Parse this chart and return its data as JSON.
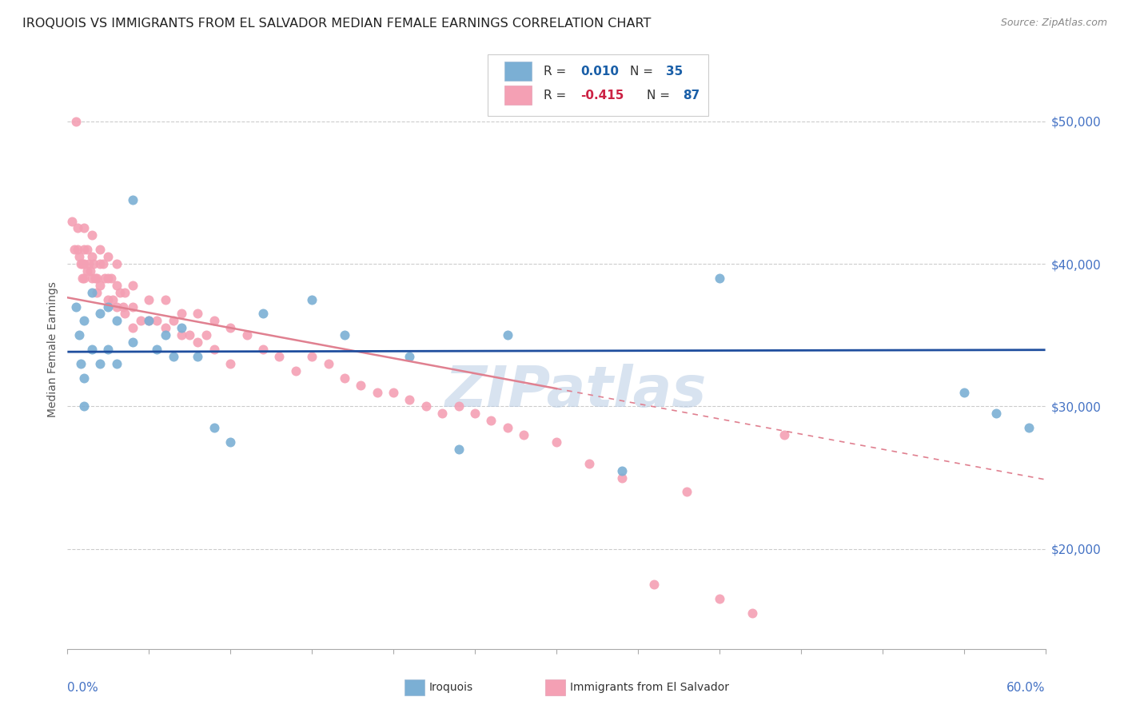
{
  "title": "IROQUOIS VS IMMIGRANTS FROM EL SALVADOR MEDIAN FEMALE EARNINGS CORRELATION CHART",
  "source": "Source: ZipAtlas.com",
  "ylabel": "Median Female Earnings",
  "right_yticks": [
    "$50,000",
    "$40,000",
    "$30,000",
    "$20,000"
  ],
  "right_ytick_vals": [
    50000,
    40000,
    30000,
    20000
  ],
  "watermark": "ZIPatlas",
  "iroquois_color": "#7bafd4",
  "salvador_color": "#f4a0b4",
  "trendline_iroquois_color": "#1f4e9e",
  "trendline_salvador_color": "#e08090",
  "xlim": [
    0.0,
    0.6
  ],
  "ylim": [
    13000,
    55000
  ],
  "grid_color": "#cccccc",
  "iroquois_x": [
    0.005,
    0.007,
    0.008,
    0.01,
    0.01,
    0.01,
    0.015,
    0.015,
    0.02,
    0.02,
    0.025,
    0.025,
    0.03,
    0.03,
    0.04,
    0.04,
    0.05,
    0.055,
    0.06,
    0.065,
    0.07,
    0.08,
    0.09,
    0.1,
    0.12,
    0.15,
    0.17,
    0.21,
    0.24,
    0.27,
    0.34,
    0.4,
    0.55,
    0.57,
    0.59
  ],
  "iroquois_y": [
    37000,
    35000,
    33000,
    36000,
    32000,
    30000,
    38000,
    34000,
    36500,
    33000,
    37000,
    34000,
    36000,
    33000,
    44500,
    34500,
    36000,
    34000,
    35000,
    33500,
    35500,
    33500,
    28500,
    27500,
    36500,
    37500,
    35000,
    33500,
    27000,
    35000,
    25500,
    39000,
    31000,
    29500,
    28500
  ],
  "salvador_x": [
    0.003,
    0.004,
    0.005,
    0.006,
    0.006,
    0.007,
    0.008,
    0.009,
    0.009,
    0.01,
    0.01,
    0.01,
    0.01,
    0.012,
    0.012,
    0.013,
    0.014,
    0.015,
    0.015,
    0.015,
    0.016,
    0.017,
    0.018,
    0.018,
    0.02,
    0.02,
    0.02,
    0.022,
    0.023,
    0.025,
    0.025,
    0.025,
    0.027,
    0.028,
    0.03,
    0.03,
    0.03,
    0.032,
    0.034,
    0.035,
    0.035,
    0.04,
    0.04,
    0.04,
    0.045,
    0.05,
    0.05,
    0.055,
    0.06,
    0.06,
    0.065,
    0.07,
    0.07,
    0.075,
    0.08,
    0.08,
    0.085,
    0.09,
    0.09,
    0.1,
    0.1,
    0.11,
    0.12,
    0.13,
    0.14,
    0.15,
    0.16,
    0.17,
    0.18,
    0.19,
    0.2,
    0.21,
    0.22,
    0.23,
    0.24,
    0.25,
    0.26,
    0.27,
    0.28,
    0.3,
    0.32,
    0.34,
    0.36,
    0.38,
    0.4,
    0.42,
    0.44
  ],
  "salvador_y": [
    43000,
    41000,
    50000,
    42500,
    41000,
    40500,
    40000,
    40000,
    39000,
    42500,
    41000,
    40000,
    39000,
    41000,
    39500,
    40000,
    39500,
    42000,
    40500,
    39000,
    40000,
    39000,
    39000,
    38000,
    41000,
    40000,
    38500,
    40000,
    39000,
    40500,
    39000,
    37500,
    39000,
    37500,
    40000,
    38500,
    37000,
    38000,
    37000,
    38000,
    36500,
    38500,
    37000,
    35500,
    36000,
    37500,
    36000,
    36000,
    37500,
    35500,
    36000,
    36500,
    35000,
    35000,
    36500,
    34500,
    35000,
    36000,
    34000,
    35500,
    33000,
    35000,
    34000,
    33500,
    32500,
    33500,
    33000,
    32000,
    31500,
    31000,
    31000,
    30500,
    30000,
    29500,
    30000,
    29500,
    29000,
    28500,
    28000,
    27500,
    26000,
    25000,
    17500,
    24000,
    16500,
    15500,
    28000
  ]
}
